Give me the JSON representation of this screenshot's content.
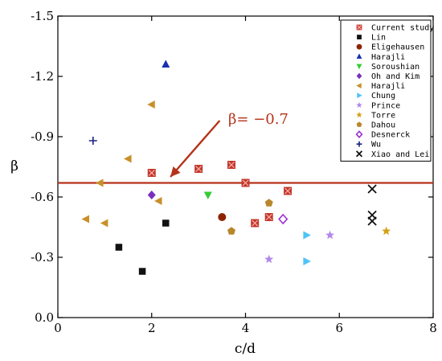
{
  "chart_data": {
    "type": "scatter",
    "xlabel": "c/d",
    "ylabel": "β",
    "xlim": [
      0,
      8
    ],
    "ylim": [
      0,
      -1.5
    ],
    "y_axis_inverted": true,
    "xticks": [
      "0",
      "2",
      "4",
      "6",
      "8"
    ],
    "yticks": [
      "0.0",
      "-0.3",
      "-0.6",
      "-0.9",
      "-1.2",
      "-1.5"
    ],
    "xtick_values": [
      0,
      2,
      4,
      6,
      8
    ],
    "ytick_values": [
      0,
      -0.3,
      -0.6,
      -0.9,
      -1.2,
      -1.5
    ],
    "grid": false,
    "legend_placement": "top-right",
    "reference_line": {
      "y": -0.67,
      "color": "#b5331a"
    },
    "annotation": {
      "text": "β= −0.7",
      "color": "#b5331a",
      "arrow_from": [
        3.45,
        -0.98
      ],
      "arrow_to": [
        2.4,
        -0.7
      ]
    },
    "series": [
      {
        "name": "Current study",
        "marker": "square-x",
        "color": "#c0392b",
        "points": [
          [
            2.0,
            -0.72
          ],
          [
            3.0,
            -0.74
          ],
          [
            3.7,
            -0.76
          ],
          [
            4.0,
            -0.67
          ],
          [
            4.2,
            -0.47
          ],
          [
            4.5,
            -0.5
          ],
          [
            4.9,
            -0.63
          ]
        ]
      },
      {
        "name": "Lin",
        "marker": "square",
        "color": "#111111",
        "points": [
          [
            1.3,
            -0.35
          ],
          [
            1.8,
            -0.23
          ],
          [
            2.3,
            -0.47
          ]
        ]
      },
      {
        "name": "Eligehausen",
        "marker": "circle",
        "color": "#8b2500",
        "points": [
          [
            3.5,
            -0.5
          ]
        ]
      },
      {
        "name": "Harajli",
        "marker": "triangle-up",
        "color": "#1a2fb0",
        "points": [
          [
            2.3,
            -1.26
          ]
        ]
      },
      {
        "name": "Soroushian",
        "marker": "triangle-down",
        "color": "#33cc33",
        "points": [
          [
            3.2,
            -0.61
          ]
        ]
      },
      {
        "name": "Oh and Kim",
        "marker": "diamond",
        "color": "#7b2fbe",
        "points": [
          [
            2.0,
            -0.61
          ]
        ]
      },
      {
        "name": "Harajli",
        "marker": "triangle-left",
        "color": "#c8902a",
        "points": [
          [
            0.6,
            -0.49
          ],
          [
            0.9,
            -0.67
          ],
          [
            1.0,
            -0.47
          ],
          [
            1.5,
            -0.79
          ],
          [
            2.0,
            -1.06
          ],
          [
            2.15,
            -0.58
          ]
        ]
      },
      {
        "name": "Chung",
        "marker": "triangle-right",
        "color": "#4fc3f7",
        "points": [
          [
            5.3,
            -0.41
          ],
          [
            5.3,
            -0.28
          ]
        ]
      },
      {
        "name": "Prince",
        "marker": "star",
        "color": "#b388eb",
        "points": [
          [
            4.5,
            -0.29
          ],
          [
            5.8,
            -0.41
          ]
        ]
      },
      {
        "name": "Torre",
        "marker": "star",
        "color": "#d4a017",
        "points": [
          [
            7.0,
            -0.43
          ]
        ]
      },
      {
        "name": "Dahou",
        "marker": "pentagon",
        "color": "#b8862b",
        "points": [
          [
            3.7,
            -0.43
          ],
          [
            4.5,
            -0.57
          ]
        ]
      },
      {
        "name": "Desnerck",
        "marker": "diamond-open",
        "color": "#9b30d0",
        "points": [
          [
            4.8,
            -0.49
          ]
        ]
      },
      {
        "name": "Wu",
        "marker": "plus",
        "color": "#1a237e",
        "points": [
          [
            0.75,
            -0.88
          ]
        ]
      },
      {
        "name": "Xiao and Lei",
        "marker": "x",
        "color": "#111111",
        "points": [
          [
            6.7,
            -0.64
          ],
          [
            6.7,
            -0.51
          ],
          [
            6.7,
            -0.48
          ]
        ]
      }
    ]
  }
}
